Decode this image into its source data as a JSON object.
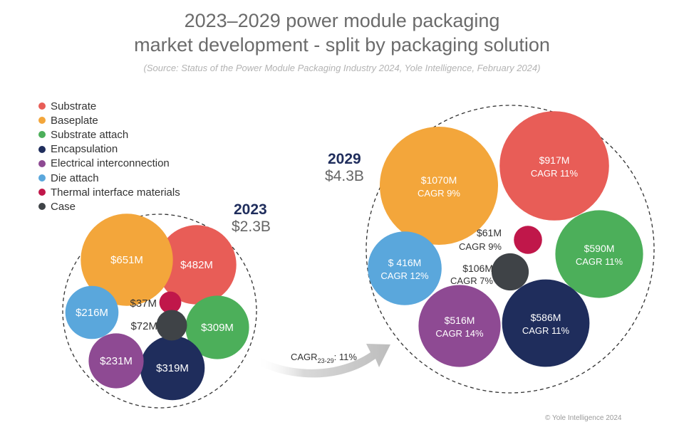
{
  "chart_data": {
    "type": "bubble",
    "title_line1": "2023–2029 power module packaging",
    "title_line2": "market development - split by packaging solution",
    "source": "(Source: Status of the Power Module Packaging Industry 2024, Yole Intelligence, February 2024)",
    "legend": [
      {
        "name": "Substrate",
        "color": "#e85d57"
      },
      {
        "name": "Baseplate",
        "color": "#f3a63b"
      },
      {
        "name": "Substrate attach",
        "color": "#4caf5a"
      },
      {
        "name": "Encapsulation",
        "color": "#1f2d5c"
      },
      {
        "name": "Electrical interconnection",
        "color": "#8e4a93"
      },
      {
        "name": "Die attach",
        "color": "#5aa7dc"
      },
      {
        "name": "Thermal interface materials",
        "color": "#c0174a"
      },
      {
        "name": "Case",
        "color": "#3f4347"
      }
    ],
    "groups": [
      {
        "year": "2023",
        "total": "$2.3B",
        "items": [
          {
            "category": "Substrate",
            "value": 482,
            "label": "$482M",
            "cagr": ""
          },
          {
            "category": "Baseplate",
            "value": 651,
            "label": "$651M",
            "cagr": ""
          },
          {
            "category": "Substrate attach",
            "value": 309,
            "label": "$309M",
            "cagr": ""
          },
          {
            "category": "Encapsulation",
            "value": 319,
            "label": "$319M",
            "cagr": ""
          },
          {
            "category": "Electrical interconnection",
            "value": 231,
            "label": "$231M",
            "cagr": ""
          },
          {
            "category": "Die attach",
            "value": 216,
            "label": "$216M",
            "cagr": ""
          },
          {
            "category": "Thermal interface materials",
            "value": 37,
            "label": "$37M",
            "cagr": ""
          },
          {
            "category": "Case",
            "value": 72,
            "label": "$72M",
            "cagr": ""
          }
        ]
      },
      {
        "year": "2029",
        "total": "$4.3B",
        "items": [
          {
            "category": "Substrate",
            "value": 917,
            "label": "$917M",
            "cagr": "CAGR 11%"
          },
          {
            "category": "Baseplate",
            "value": 1070,
            "label": "$1070M",
            "cagr": "CAGR 9%"
          },
          {
            "category": "Substrate attach",
            "value": 590,
            "label": "$590M",
            "cagr": "CAGR 11%"
          },
          {
            "category": "Encapsulation",
            "value": 586,
            "label": "$586M",
            "cagr": "CAGR 11%"
          },
          {
            "category": "Electrical interconnection",
            "value": 516,
            "label": "$516M",
            "cagr": "CAGR 14%"
          },
          {
            "category": "Die attach",
            "value": 416,
            "label": "$ 416M",
            "cagr": "CAGR 12%"
          },
          {
            "category": "Thermal interface materials",
            "value": 61,
            "label": "$61M",
            "cagr": "CAGR 9%"
          },
          {
            "category": "Case",
            "value": 106,
            "label": "$106M",
            "cagr": "CAGR 7%"
          }
        ]
      }
    ],
    "arrow_label_prefix": "CAGR",
    "arrow_label_sub": "23-29",
    "arrow_label_suffix": ": 11%",
    "copyright": "© Yole Intelligence 2024"
  }
}
